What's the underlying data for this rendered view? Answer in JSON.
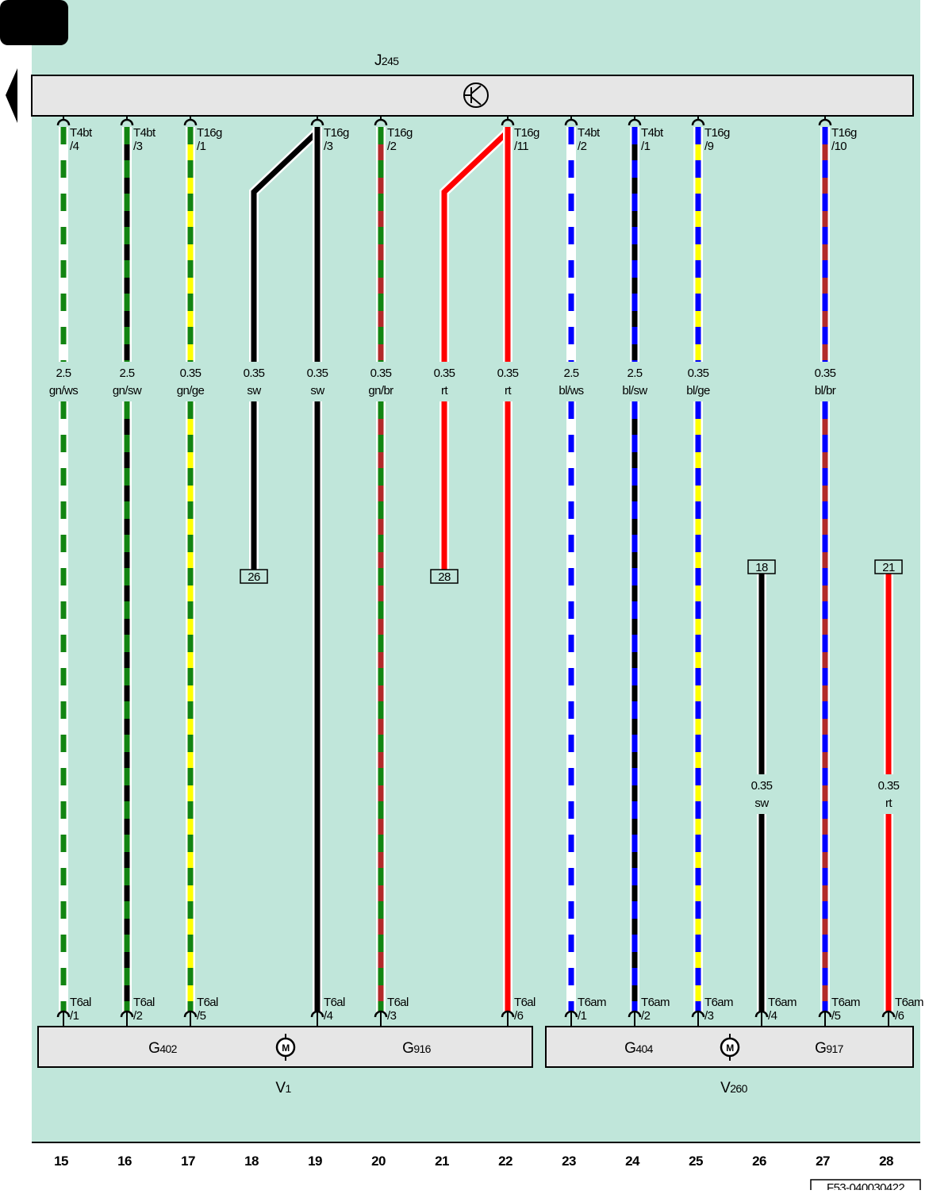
{
  "control_unit": {
    "letter": "J",
    "number": "245"
  },
  "wires": [
    {
      "column": "15",
      "top": {
        "connector": "T4bt",
        "pin": "/4"
      },
      "size": "2.5",
      "color": "gn/ws",
      "stripes": [
        "#128512",
        "#ffffff"
      ],
      "bottom": {
        "connector": "T6al",
        "pin": "/1"
      }
    },
    {
      "column": "16",
      "top": {
        "connector": "T4bt",
        "pin": "/3"
      },
      "size": "2.5",
      "color": "gn/sw",
      "stripes": [
        "#128512",
        "#000000"
      ],
      "bottom": {
        "connector": "T6al",
        "pin": "/2"
      }
    },
    {
      "column": "17",
      "top": {
        "connector": "T16g",
        "pin": "/1"
      },
      "size": "0.35",
      "color": "gn/ge",
      "stripes": [
        "#128512",
        "#ffff00"
      ],
      "bottom": {
        "connector": "T6al",
        "pin": "/5"
      }
    },
    {
      "column": "18",
      "size": "0.35",
      "color": "sw",
      "stripes": [
        "#000000"
      ],
      "end_box": "26"
    },
    {
      "column": "19",
      "top": {
        "connector": "T16g",
        "pin": "/3"
      },
      "size": "0.35",
      "color": "sw",
      "stripes": [
        "#000000"
      ],
      "bottom": {
        "connector": "T6al",
        "pin": "/4"
      }
    },
    {
      "column": "20",
      "top": {
        "connector": "T16g",
        "pin": "/2"
      },
      "size": "0.35",
      "color": "gn/br",
      "stripes": [
        "#128512",
        "#b22a2a"
      ],
      "bottom": {
        "connector": "T6al",
        "pin": "/3"
      }
    },
    {
      "column": "21",
      "size": "0.35",
      "color": "rt",
      "stripes": [
        "#ff0000"
      ],
      "end_box": "28"
    },
    {
      "column": "22",
      "top": {
        "connector": "T16g",
        "pin": "/11"
      },
      "size": "0.35",
      "color": "rt",
      "stripes": [
        "#ff0000"
      ],
      "bottom": {
        "connector": "T6al",
        "pin": "/6"
      }
    },
    {
      "column": "23",
      "top": {
        "connector": "T4bt",
        "pin": "/2"
      },
      "size": "2.5",
      "color": "bl/ws",
      "stripes": [
        "#0000ff",
        "#ffffff"
      ],
      "bottom": {
        "connector": "T6am",
        "pin": "/1"
      }
    },
    {
      "column": "24",
      "top": {
        "connector": "T4bt",
        "pin": "/1"
      },
      "size": "2.5",
      "color": "bl/sw",
      "stripes": [
        "#0000ff",
        "#000000"
      ],
      "bottom": {
        "connector": "T6am",
        "pin": "/2"
      }
    },
    {
      "column": "25",
      "top": {
        "connector": "T16g",
        "pin": "/9"
      },
      "size": "0.35",
      "color": "bl/ge",
      "stripes": [
        "#0000ff",
        "#ffff00"
      ],
      "bottom": {
        "connector": "T6am",
        "pin": "/3"
      }
    },
    {
      "column": "26",
      "start_box": "18",
      "size": "0.35",
      "color": "sw",
      "stripes": [
        "#000000"
      ],
      "bottom": {
        "connector": "T6am",
        "pin": "/4"
      }
    },
    {
      "column": "27",
      "top": {
        "connector": "T16g",
        "pin": "/10"
      },
      "size": "0.35",
      "color": "bl/br",
      "stripes": [
        "#0000ff",
        "#b22a2a"
      ],
      "bottom": {
        "connector": "T6am",
        "pin": "/5"
      }
    },
    {
      "column": "28",
      "start_box": "21",
      "size": "0.35",
      "color": "rt",
      "stripes": [
        "#ff0000"
      ],
      "bottom": {
        "connector": "T6am",
        "pin": "/6"
      }
    }
  ],
  "motors": [
    {
      "sensors": [
        {
          "letter": "G",
          "number": "402"
        },
        {
          "letter": "G",
          "number": "916"
        }
      ],
      "symbol": "M",
      "letter": "V",
      "number": "1"
    },
    {
      "sensors": [
        {
          "letter": "G",
          "number": "404"
        },
        {
          "letter": "G",
          "number": "917"
        }
      ],
      "symbol": "M",
      "letter": "V",
      "number": "260"
    }
  ],
  "reference": "F53-040030422"
}
